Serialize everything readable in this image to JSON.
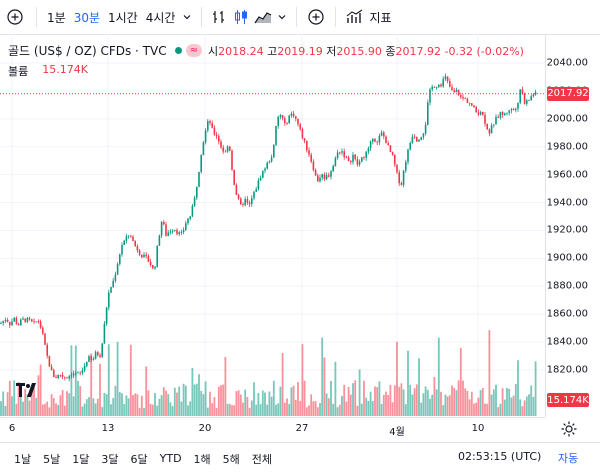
{
  "toolbar": {
    "intervals": [
      {
        "label": "1분",
        "active": false
      },
      {
        "label": "30분",
        "active": true
      },
      {
        "label": "1시간",
        "active": false
      },
      {
        "label": "4시간",
        "active": false
      }
    ],
    "indicators_label": "지표"
  },
  "legend": {
    "symbol": "골드 (US$ / OZ) CFDs · TVC",
    "eq_badge": "≈",
    "open_label": "시",
    "open": "2018.24",
    "high_label": "고",
    "high": "2019.19",
    "low_label": "저",
    "low": "2015.90",
    "close_label": "종",
    "close": "2017.92",
    "change": "-0.32 (-0.02%)",
    "volume_label": "볼륨",
    "volume": "15.174K"
  },
  "price_axis": {
    "ticks": [
      "2040.00",
      "2020.00",
      "2000.00",
      "1980.00",
      "1960.00",
      "1940.00",
      "1920.00",
      "1900.00",
      "1880.00",
      "1860.00",
      "1840.00",
      "1820.00"
    ],
    "last_price_tag": "2017.92",
    "volume_tag": "15.174K"
  },
  "time_axis": {
    "ticks": [
      "6",
      "13",
      "20",
      "27",
      "4월",
      "10"
    ]
  },
  "bottom_bar": {
    "ranges": [
      "1날",
      "5날",
      "1달",
      "3달",
      "6달",
      "YTD",
      "1해",
      "5해",
      "전체"
    ],
    "clock": "02:53:15 (UTC)",
    "auto_label": "자동"
  },
  "colors": {
    "up": "#089981",
    "down": "#f23645",
    "accent": "#2962ff"
  },
  "chart_data": {
    "type": "candlestick",
    "interval": "30분",
    "y_range": [
      1808,
      2048
    ],
    "last_price": 2017.92,
    "x_ticks": [
      "6",
      "13",
      "20",
      "27",
      "4월",
      "10"
    ],
    "price_path": [
      [
        0,
        1853
      ],
      [
        6,
        1857
      ],
      [
        10,
        1853
      ],
      [
        14,
        1857
      ],
      [
        18,
        1852
      ],
      [
        22,
        1856
      ],
      [
        26,
        1856
      ],
      [
        30,
        1855
      ],
      [
        34,
        1853
      ],
      [
        38,
        1856
      ],
      [
        42,
        1848
      ],
      [
        44,
        1840
      ],
      [
        47,
        1830
      ],
      [
        50,
        1822
      ],
      [
        53,
        1816
      ],
      [
        56,
        1815
      ],
      [
        60,
        1817
      ],
      [
        64,
        1815
      ],
      [
        68,
        1815
      ],
      [
        72,
        1818
      ],
      [
        76,
        1817
      ],
      [
        80,
        1817
      ],
      [
        84,
        1822
      ],
      [
        88,
        1829
      ],
      [
        92,
        1826
      ],
      [
        96,
        1832
      ],
      [
        100,
        1831
      ],
      [
        102,
        1838
      ],
      [
        104,
        1850
      ],
      [
        106,
        1862
      ],
      [
        108,
        1873
      ],
      [
        110,
        1878
      ],
      [
        114,
        1885
      ],
      [
        118,
        1898
      ],
      [
        122,
        1910
      ],
      [
        126,
        1914
      ],
      [
        130,
        1918
      ],
      [
        134,
        1910
      ],
      [
        138,
        1906
      ],
      [
        142,
        1902
      ],
      [
        146,
        1900
      ],
      [
        150,
        1897
      ],
      [
        154,
        1890
      ],
      [
        158,
        1912
      ],
      [
        162,
        1928
      ],
      [
        166,
        1917
      ],
      [
        170,
        1920
      ],
      [
        174,
        1922
      ],
      [
        178,
        1918
      ],
      [
        182,
        1917
      ],
      [
        186,
        1926
      ],
      [
        190,
        1930
      ],
      [
        194,
        1940
      ],
      [
        198,
        1958
      ],
      [
        201,
        1975
      ],
      [
        205,
        1990
      ],
      [
        209,
        2000
      ],
      [
        213,
        1990
      ],
      [
        217,
        1988
      ],
      [
        221,
        1980
      ],
      [
        225,
        1975
      ],
      [
        229,
        1983
      ],
      [
        233,
        1958
      ],
      [
        237,
        1944
      ],
      [
        241,
        1937
      ],
      [
        245,
        1942
      ],
      [
        249,
        1937
      ],
      [
        253,
        1945
      ],
      [
        257,
        1952
      ],
      [
        261,
        1960
      ],
      [
        265,
        1965
      ],
      [
        269,
        1970
      ],
      [
        273,
        1975
      ],
      [
        277,
        2000
      ],
      [
        281,
        2003
      ],
      [
        285,
        1995
      ],
      [
        289,
        2002
      ],
      [
        293,
        2004
      ],
      [
        297,
        1998
      ],
      [
        301,
        1990
      ],
      [
        305,
        1982
      ],
      [
        309,
        1975
      ],
      [
        313,
        1966
      ],
      [
        317,
        1955
      ],
      [
        321,
        1960
      ],
      [
        325,
        1958
      ],
      [
        329,
        1960
      ],
      [
        333,
        1966
      ],
      [
        337,
        1975
      ],
      [
        341,
        1978
      ],
      [
        345,
        1973
      ],
      [
        349,
        1968
      ],
      [
        353,
        1974
      ],
      [
        357,
        1967
      ],
      [
        361,
        1970
      ],
      [
        365,
        1975
      ],
      [
        369,
        1978
      ],
      [
        373,
        1988
      ],
      [
        377,
        1982
      ],
      [
        381,
        1990
      ],
      [
        385,
        1986
      ],
      [
        389,
        1978
      ],
      [
        393,
        1972
      ],
      [
        397,
        1960
      ],
      [
        401,
        1952
      ],
      [
        405,
        1968
      ],
      [
        409,
        1980
      ],
      [
        413,
        1990
      ],
      [
        417,
        1985
      ],
      [
        421,
        1988
      ],
      [
        425,
        1993
      ],
      [
        429,
        2018
      ],
      [
        433,
        2024
      ],
      [
        437,
        2024
      ],
      [
        441,
        2025
      ],
      [
        445,
        2030
      ],
      [
        449,
        2024
      ],
      [
        453,
        2018
      ],
      [
        457,
        2020
      ],
      [
        461,
        2015
      ],
      [
        465,
        2014
      ],
      [
        469,
        2012
      ],
      [
        473,
        2008
      ],
      [
        477,
        2004
      ],
      [
        481,
        2006
      ],
      [
        485,
        1998
      ],
      [
        489,
        1990
      ],
      [
        493,
        1996
      ],
      [
        497,
        2001
      ],
      [
        501,
        2004
      ],
      [
        505,
        2003
      ],
      [
        509,
        2007
      ],
      [
        513,
        2006
      ],
      [
        517,
        2010
      ],
      [
        521,
        2022
      ],
      [
        525,
        2010
      ],
      [
        529,
        2014
      ],
      [
        533,
        2018
      ],
      [
        537,
        2017
      ]
    ]
  }
}
